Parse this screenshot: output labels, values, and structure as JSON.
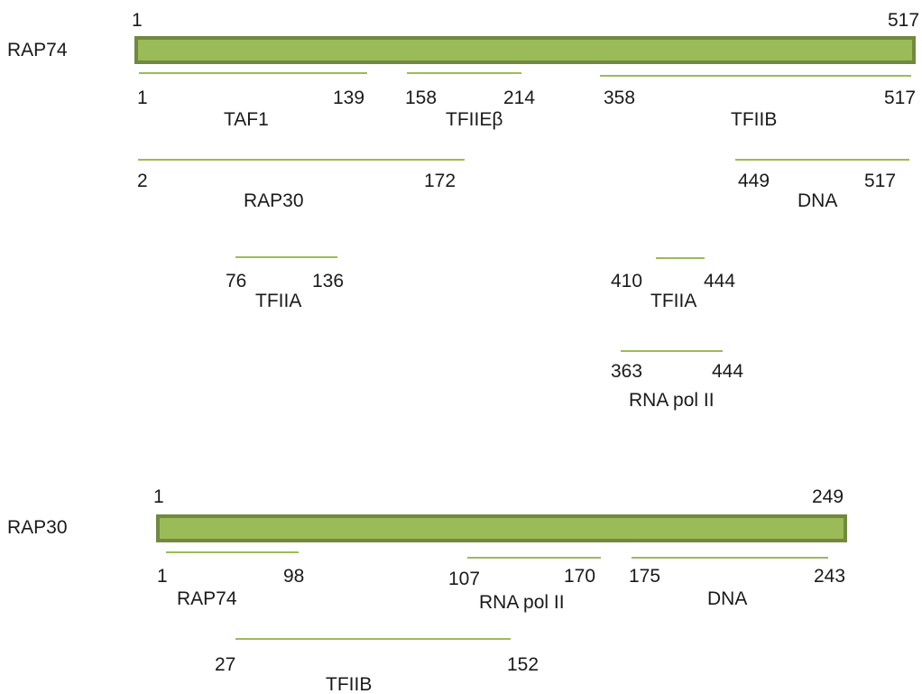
{
  "diagram": {
    "colors": {
      "bar_fill": "#9bbb59",
      "bar_stroke": "#71893f",
      "region_line": "#9bbb59",
      "text": "#1a1a1a"
    },
    "proteins": [
      {
        "name": "RAP74",
        "start_label": "1",
        "end_label": "517",
        "regions": [
          {
            "partner": "TAF1",
            "start": "1",
            "end": "139"
          },
          {
            "partner": "TFIIEβ",
            "start": "158",
            "end": "214"
          },
          {
            "partner": "TFIIB",
            "start": "358",
            "end": "517"
          },
          {
            "partner": "RAP30",
            "start": "2",
            "end": "172"
          },
          {
            "partner": "DNA",
            "start": "449",
            "end": "517"
          },
          {
            "partner": "TFIIA",
            "start": "76",
            "end": "136"
          },
          {
            "partner": "TFIIA",
            "start": "410",
            "end": "444"
          },
          {
            "partner": "RNA pol II",
            "start": "363",
            "end": "444"
          }
        ]
      },
      {
        "name": "RAP30",
        "start_label": "1",
        "end_label": "249",
        "regions": [
          {
            "partner": "RAP74",
            "start": "1",
            "end": "98"
          },
          {
            "partner": "RNA pol II",
            "start": "107",
            "end": "170"
          },
          {
            "partner": "DNA",
            "start": "175",
            "end": "243"
          },
          {
            "partner": "TFIIB",
            "start": "27",
            "end": "152"
          }
        ]
      }
    ]
  }
}
